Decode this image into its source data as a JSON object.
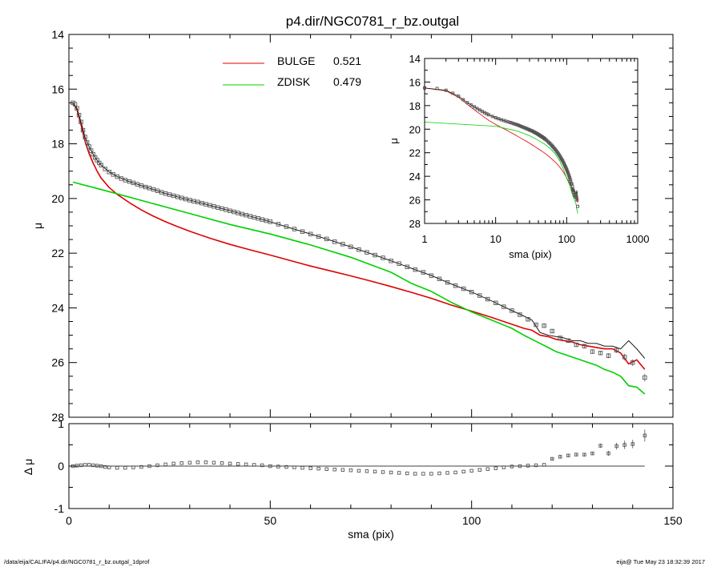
{
  "footer": {
    "path": "/data/eija/CALIFA/p4.dir/NGC0781_r_bz.outgal_1dprof",
    "stamp": "eija@  Tue May 23 18:32:39 2017"
  },
  "colors": {
    "bulge": "#e00000",
    "zdisk": "#00d000",
    "total": "#000000",
    "points": "#555555"
  },
  "chart_data": [
    {
      "id": "main",
      "type": "line",
      "title": "p4.dir/NGC0781_r_bz.outgal",
      "xlabel": "",
      "ylabel": "μ",
      "xlim": [
        0,
        150
      ],
      "ylim": [
        28,
        14
      ],
      "xticks": [
        0,
        50,
        100,
        150
      ],
      "yticks": [
        14,
        16,
        18,
        20,
        22,
        24,
        26,
        28
      ],
      "legend": {
        "placement": "top-center",
        "entries": [
          {
            "name": "BULGE",
            "value": "0.521",
            "color": "#e00000"
          },
          {
            "name": "ZDISK",
            "value": "0.479",
            "color": "#00d000"
          }
        ]
      },
      "observed": {
        "x": [
          1,
          1.5,
          2,
          2.5,
          3,
          3.5,
          4,
          4.5,
          5,
          5.5,
          6,
          6.5,
          7,
          7.5,
          8,
          9,
          10,
          11,
          12,
          13,
          14,
          15,
          16,
          17,
          18,
          19,
          20,
          21,
          22,
          23,
          24,
          25,
          26,
          27,
          28,
          29,
          30,
          31,
          32,
          33,
          34,
          35,
          36,
          37,
          38,
          39,
          40,
          41,
          42,
          43,
          44,
          45,
          46,
          47,
          48,
          49,
          50,
          52,
          54,
          56,
          58,
          60,
          62,
          64,
          66,
          68,
          70,
          72,
          74,
          76,
          78,
          80,
          82,
          84,
          86,
          88,
          90,
          92,
          94,
          96,
          98,
          100,
          102,
          104,
          106,
          108,
          110,
          112,
          114,
          116,
          118,
          120,
          122,
          124,
          126,
          128,
          130,
          132,
          134,
          136,
          138,
          140,
          143
        ],
        "y": [
          16.5,
          16.55,
          16.7,
          16.95,
          17.2,
          17.5,
          17.75,
          17.95,
          18.1,
          18.25,
          18.38,
          18.5,
          18.6,
          18.7,
          18.78,
          18.92,
          19.03,
          19.12,
          19.2,
          19.27,
          19.33,
          19.38,
          19.43,
          19.48,
          19.53,
          19.58,
          19.62,
          19.67,
          19.72,
          19.77,
          19.82,
          19.86,
          19.9,
          19.94,
          19.98,
          20.02,
          20.06,
          20.1,
          20.13,
          20.17,
          20.21,
          20.25,
          20.29,
          20.33,
          20.37,
          20.41,
          20.45,
          20.49,
          20.53,
          20.57,
          20.61,
          20.65,
          20.69,
          20.73,
          20.77,
          20.81,
          20.85,
          20.94,
          21.03,
          21.12,
          21.21,
          21.3,
          21.39,
          21.48,
          21.58,
          21.67,
          21.77,
          21.87,
          21.97,
          22.07,
          22.17,
          22.28,
          22.38,
          22.5,
          22.6,
          22.7,
          22.82,
          22.94,
          23.07,
          23.19,
          23.3,
          23.42,
          23.55,
          23.68,
          23.82,
          23.96,
          24.1,
          24.25,
          24.42,
          24.62,
          24.65,
          24.85,
          25.1,
          25.2,
          25.35,
          25.4,
          25.6,
          25.65,
          25.75,
          25.55,
          25.8,
          26.0,
          26.55
        ],
        "err": [
          0.02,
          0.02,
          0.02,
          0.02,
          0.02,
          0.02,
          0.02,
          0.02,
          0.02,
          0.02,
          0.02,
          0.02,
          0.02,
          0.02,
          0.02,
          0.02,
          0.02,
          0.02,
          0.02,
          0.02,
          0.02,
          0.02,
          0.02,
          0.02,
          0.02,
          0.02,
          0.02,
          0.02,
          0.02,
          0.02,
          0.02,
          0.02,
          0.02,
          0.02,
          0.02,
          0.02,
          0.02,
          0.02,
          0.02,
          0.02,
          0.02,
          0.02,
          0.02,
          0.02,
          0.02,
          0.02,
          0.02,
          0.02,
          0.02,
          0.02,
          0.02,
          0.02,
          0.02,
          0.02,
          0.02,
          0.02,
          0.02,
          0.02,
          0.02,
          0.02,
          0.02,
          0.02,
          0.02,
          0.02,
          0.02,
          0.02,
          0.02,
          0.02,
          0.02,
          0.02,
          0.02,
          0.02,
          0.02,
          0.03,
          0.03,
          0.03,
          0.03,
          0.03,
          0.03,
          0.03,
          0.03,
          0.03,
          0.04,
          0.04,
          0.04,
          0.04,
          0.04,
          0.05,
          0.05,
          0.05,
          0.06,
          0.06,
          0.06,
          0.07,
          0.07,
          0.08,
          0.08,
          0.08,
          0.09,
          0.1,
          0.12,
          0.12,
          0.14
        ]
      },
      "model_total": {
        "x": [
          1,
          2,
          3,
          4,
          5,
          6,
          7,
          8,
          10,
          12,
          15,
          18,
          21,
          24,
          27,
          30,
          33,
          36,
          40,
          45,
          50,
          55,
          60,
          65,
          70,
          75,
          80,
          85,
          90,
          95,
          100,
          105,
          110,
          113,
          115,
          117,
          119,
          121,
          123,
          125,
          127,
          129,
          131,
          133,
          135,
          137,
          139,
          141,
          143
        ],
        "y": [
          16.5,
          16.7,
          17.2,
          17.75,
          18.1,
          18.38,
          18.6,
          18.78,
          19.03,
          19.2,
          19.38,
          19.53,
          19.67,
          19.82,
          19.94,
          20.06,
          20.17,
          20.29,
          20.45,
          20.65,
          20.85,
          21.08,
          21.3,
          21.53,
          21.77,
          22.02,
          22.28,
          22.55,
          22.82,
          23.13,
          23.42,
          23.75,
          24.1,
          24.3,
          24.45,
          24.9,
          25.0,
          25.05,
          25.1,
          25.2,
          25.2,
          25.3,
          25.3,
          25.4,
          25.4,
          25.5,
          25.2,
          25.5,
          25.85
        ]
      },
      "bulge": {
        "x": [
          1,
          2,
          3,
          4,
          5,
          6,
          7,
          8,
          10,
          12,
          15,
          18,
          21,
          24,
          27,
          30,
          35,
          40,
          45,
          50,
          55,
          60,
          65,
          70,
          75,
          80,
          85,
          90,
          95,
          100,
          105,
          110,
          113,
          115,
          117,
          119,
          121,
          123,
          125,
          127,
          129,
          131,
          133,
          135,
          137,
          139,
          141,
          143
        ],
        "y": [
          16.5,
          16.75,
          17.3,
          17.9,
          18.35,
          18.7,
          19.0,
          19.25,
          19.6,
          19.85,
          20.15,
          20.42,
          20.65,
          20.85,
          21.03,
          21.2,
          21.45,
          21.68,
          21.88,
          22.07,
          22.27,
          22.47,
          22.65,
          22.83,
          23.02,
          23.22,
          23.43,
          23.65,
          23.9,
          24.12,
          24.35,
          24.6,
          24.75,
          24.82,
          25.0,
          25.05,
          25.15,
          25.2,
          25.25,
          25.35,
          25.4,
          25.45,
          25.5,
          25.5,
          25.65,
          26.05,
          25.9,
          26.25
        ]
      },
      "zdisk": {
        "x": [
          1,
          10,
          20,
          30,
          40,
          50,
          60,
          70,
          80,
          85,
          90,
          95,
          100,
          105,
          110,
          113,
          115,
          117,
          119,
          121,
          123,
          125,
          127,
          129,
          131,
          133,
          135,
          137,
          139,
          141,
          143
        ],
        "y": [
          19.4,
          19.75,
          20.15,
          20.55,
          20.95,
          21.3,
          21.7,
          22.15,
          22.7,
          23.1,
          23.4,
          23.8,
          24.15,
          24.45,
          24.75,
          25.0,
          25.15,
          25.3,
          25.45,
          25.6,
          25.7,
          25.8,
          25.9,
          26.0,
          26.1,
          26.25,
          26.35,
          26.5,
          26.85,
          26.9,
          27.15
        ]
      }
    },
    {
      "id": "inset",
      "type": "line",
      "xscale": "log",
      "xlabel": "sma (pix)",
      "ylabel": "μ",
      "xlim": [
        1,
        1000
      ],
      "ylim": [
        28,
        14
      ],
      "xticks": [
        1,
        10,
        100,
        1000
      ],
      "yticks": [
        14,
        16,
        18,
        20,
        22,
        24,
        26,
        28
      ]
    },
    {
      "id": "residual",
      "type": "scatter",
      "xlabel": "sma (pix)",
      "ylabel": "Δ μ",
      "xlim": [
        0,
        150
      ],
      "ylim": [
        -1,
        1
      ],
      "xticks": [
        0,
        50,
        100,
        150
      ],
      "yticks": [
        -1,
        0,
        1
      ],
      "x": [
        1,
        2,
        3,
        4,
        5,
        6,
        7,
        8,
        9,
        10,
        12,
        14,
        16,
        18,
        20,
        22,
        24,
        26,
        28,
        30,
        32,
        34,
        36,
        38,
        40,
        42,
        44,
        46,
        48,
        50,
        52,
        54,
        56,
        58,
        60,
        62,
        64,
        66,
        68,
        70,
        72,
        74,
        76,
        78,
        80,
        82,
        84,
        86,
        88,
        90,
        92,
        94,
        96,
        98,
        100,
        102,
        104,
        106,
        108,
        110,
        112,
        114,
        116,
        118,
        120,
        122,
        124,
        126,
        128,
        130,
        132,
        134,
        136,
        138,
        140,
        143
      ],
      "y": [
        0.0,
        0.01,
        0.02,
        0.03,
        0.03,
        0.02,
        0.01,
        0.0,
        -0.02,
        -0.03,
        -0.04,
        -0.04,
        -0.03,
        -0.02,
        0.0,
        0.02,
        0.04,
        0.06,
        0.07,
        0.08,
        0.09,
        0.09,
        0.08,
        0.07,
        0.06,
        0.05,
        0.04,
        0.03,
        0.02,
        0.0,
        -0.01,
        -0.02,
        -0.03,
        -0.04,
        -0.05,
        -0.06,
        -0.07,
        -0.08,
        -0.09,
        -0.1,
        -0.11,
        -0.12,
        -0.13,
        -0.14,
        -0.15,
        -0.16,
        -0.17,
        -0.18,
        -0.18,
        -0.18,
        -0.17,
        -0.16,
        -0.15,
        -0.13,
        -0.11,
        -0.09,
        -0.07,
        -0.05,
        -0.03,
        -0.01,
        0.0,
        0.01,
        0.02,
        0.03,
        0.17,
        0.22,
        0.25,
        0.27,
        0.27,
        0.3,
        0.48,
        0.3,
        0.47,
        0.5,
        0.52,
        0.72
      ],
      "err": [
        0.01,
        0.01,
        0.01,
        0.01,
        0.01,
        0.01,
        0.01,
        0.01,
        0.01,
        0.01,
        0.01,
        0.01,
        0.01,
        0.01,
        0.01,
        0.01,
        0.01,
        0.01,
        0.01,
        0.01,
        0.01,
        0.01,
        0.01,
        0.01,
        0.01,
        0.01,
        0.01,
        0.01,
        0.01,
        0.01,
        0.01,
        0.01,
        0.01,
        0.01,
        0.01,
        0.01,
        0.01,
        0.01,
        0.01,
        0.01,
        0.01,
        0.01,
        0.01,
        0.01,
        0.01,
        0.01,
        0.01,
        0.01,
        0.01,
        0.01,
        0.01,
        0.01,
        0.01,
        0.01,
        0.01,
        0.01,
        0.01,
        0.01,
        0.01,
        0.01,
        0.01,
        0.01,
        0.01,
        0.01,
        0.03,
        0.03,
        0.03,
        0.03,
        0.04,
        0.04,
        0.05,
        0.06,
        0.08,
        0.1,
        0.1,
        0.14
      ]
    }
  ]
}
